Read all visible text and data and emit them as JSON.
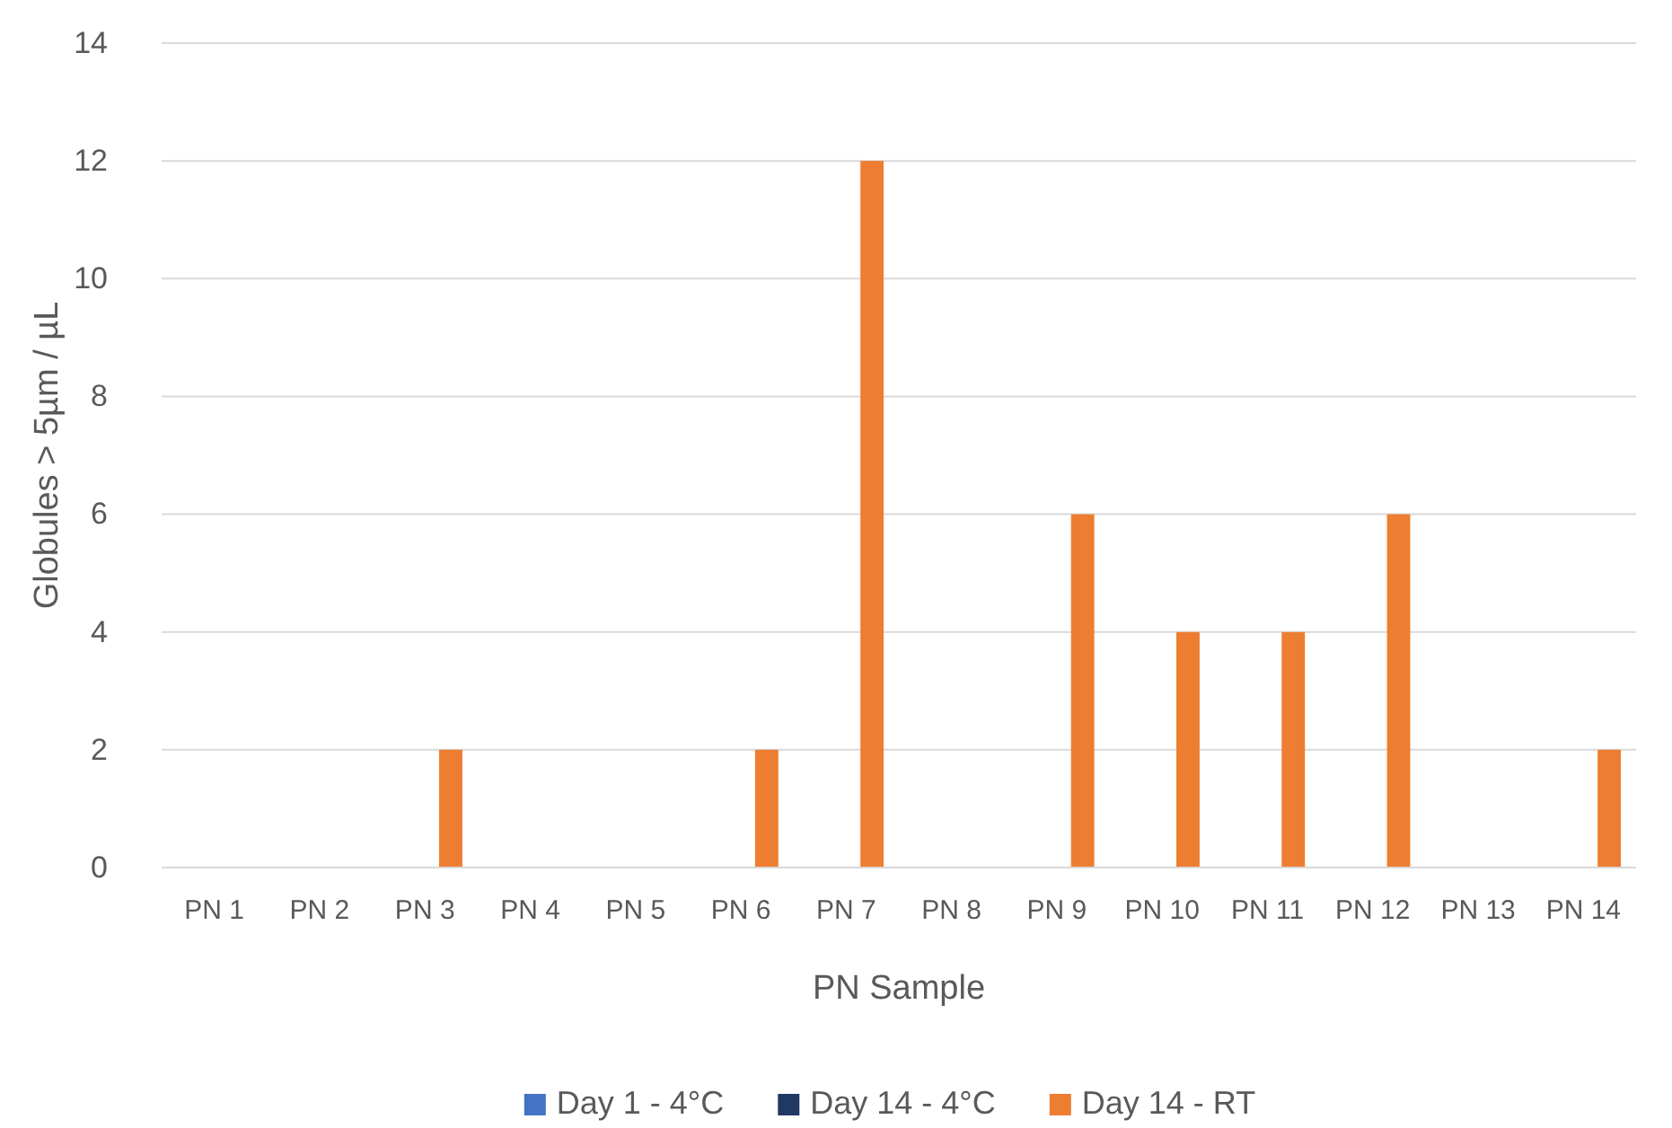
{
  "chart_data": {
    "type": "bar",
    "xlabel": "PN Sample",
    "ylabel": "Globules > 5µm / µL",
    "categories": [
      "PN 1",
      "PN 2",
      "PN 3",
      "PN 4",
      "PN 5",
      "PN 6",
      "PN 7",
      "PN 8",
      "PN 9",
      "PN 10",
      "PN 11",
      "PN 12",
      "PN 13",
      "PN 14"
    ],
    "series": [
      {
        "name": "Day 1 - 4°C",
        "color": "#4472c4",
        "values": [
          0,
          0,
          0,
          0,
          0,
          0,
          0,
          0,
          0,
          0,
          0,
          0,
          0,
          0
        ]
      },
      {
        "name": "Day 14 - 4°C",
        "color": "#203864",
        "values": [
          0,
          0,
          0,
          0,
          0,
          0,
          0,
          0,
          0,
          0,
          0,
          0,
          0,
          0
        ]
      },
      {
        "name": "Day 14 - RT",
        "color": "#ed7d31",
        "values": [
          0,
          0,
          2,
          0,
          0,
          2,
          12,
          0,
          6,
          4,
          4,
          6,
          0,
          2
        ]
      }
    ],
    "ylim": [
      0,
      14
    ],
    "yticks": [
      0,
      2,
      4,
      6,
      8,
      10,
      12,
      14
    ],
    "grid": "y",
    "legend": "bottom"
  }
}
